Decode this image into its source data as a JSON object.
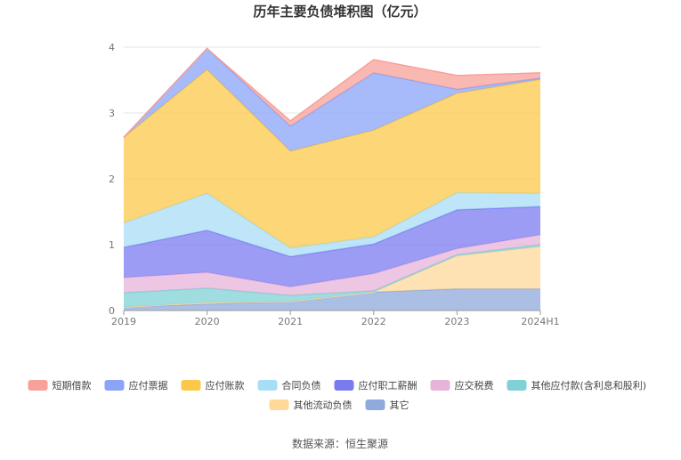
{
  "chart_data": {
    "type": "area",
    "stacked": true,
    "title": "历年主要负债堆积图（亿元）",
    "categories": [
      "2019",
      "2020",
      "2021",
      "2022",
      "2023",
      "2024H1"
    ],
    "ylim": [
      0,
      4
    ],
    "yticks": [
      "0",
      "1",
      "2",
      "3",
      "4"
    ],
    "grid": true,
    "legend_position": "bottom",
    "series": [
      {
        "name": "其它",
        "color": "#8FAADC",
        "values": [
          0.05,
          0.1,
          0.14,
          0.28,
          0.33,
          0.33
        ]
      },
      {
        "name": "其他流动负债",
        "color": "#FFD89A",
        "values": [
          0.0,
          0.02,
          0.0,
          0.0,
          0.5,
          0.64
        ]
      },
      {
        "name": "其他应付款(含利息和股利)",
        "color": "#7FD1D6",
        "values": [
          0.22,
          0.22,
          0.09,
          0.02,
          0.02,
          0.03
        ]
      },
      {
        "name": "应交税费",
        "color": "#E6B3DA",
        "values": [
          0.23,
          0.24,
          0.13,
          0.26,
          0.09,
          0.15
        ]
      },
      {
        "name": "应付职工薪酬",
        "color": "#7B7BF0",
        "values": [
          0.46,
          0.64,
          0.46,
          0.45,
          0.59,
          0.43
        ]
      },
      {
        "name": "合同负债",
        "color": "#A8DEF5",
        "values": [
          0.37,
          0.56,
          0.13,
          0.11,
          0.26,
          0.2
        ]
      },
      {
        "name": "应付账款",
        "color": "#FBC84A",
        "values": [
          1.3,
          1.88,
          1.47,
          1.62,
          1.51,
          1.73
        ]
      },
      {
        "name": "应付票据",
        "color": "#8AA4F8",
        "values": [
          0.0,
          0.32,
          0.38,
          0.87,
          0.06,
          0.02
        ]
      },
      {
        "name": "短期借款",
        "color": "#F8A09A",
        "values": [
          0.0,
          0.0,
          0.08,
          0.2,
          0.21,
          0.08
        ]
      }
    ],
    "legend_order": [
      "短期借款",
      "应付票据",
      "应付账款",
      "合同负债",
      "应付职工薪酬",
      "应交税费",
      "其他应付款(含利息和股利)",
      "其他流动负债",
      "其它"
    ]
  },
  "source": "数据来源：恒生聚源"
}
